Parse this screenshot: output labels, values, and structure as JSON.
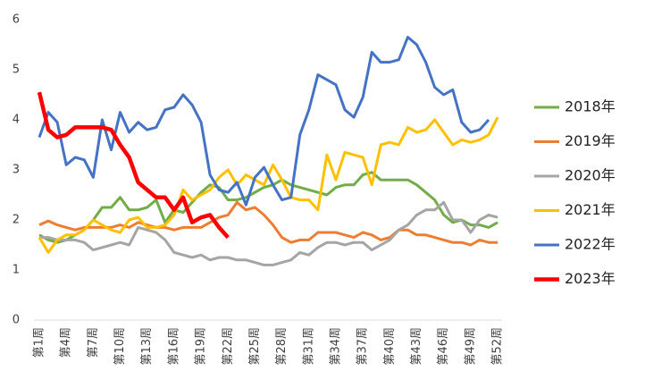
{
  "chart_data": {
    "type": "line",
    "categories": [
      "第1周",
      null,
      null,
      "第4周",
      null,
      null,
      "第7周",
      null,
      null,
      "第10周",
      null,
      null,
      "第13周",
      null,
      null,
      "第16周",
      null,
      null,
      "第19周",
      null,
      null,
      "第22周",
      null,
      null,
      "第25周",
      null,
      null,
      "第28周",
      null,
      null,
      "第31周",
      null,
      null,
      "第34周",
      null,
      null,
      "第37周",
      null,
      null,
      "第40周",
      null,
      null,
      "第43周",
      null,
      null,
      "第46周",
      null,
      null,
      "第49周",
      null,
      null,
      "第52周"
    ],
    "series": [
      {
        "name": "2018年",
        "color": "#70ad47",
        "values": [
          1.7,
          1.6,
          1.55,
          1.6,
          1.7,
          1.8,
          2.0,
          2.25,
          2.25,
          2.45,
          2.2,
          2.2,
          2.25,
          2.4,
          1.95,
          2.2,
          2.15,
          2.35,
          2.55,
          2.7,
          2.65,
          2.4,
          2.4,
          2.45,
          2.55,
          2.65,
          2.7,
          2.8,
          2.7,
          2.65,
          2.6,
          2.55,
          2.5,
          2.65,
          2.7,
          2.7,
          2.9,
          2.95,
          2.8,
          2.8,
          2.8,
          2.8,
          2.7,
          2.55,
          2.4,
          2.1,
          1.95,
          2.0,
          1.9,
          1.9,
          1.85,
          1.95
        ]
      },
      {
        "name": "2019年",
        "color": "#ed7d31",
        "values": [
          1.9,
          1.98,
          1.9,
          1.85,
          1.8,
          1.85,
          1.85,
          1.85,
          1.85,
          1.9,
          1.85,
          1.95,
          1.9,
          1.85,
          1.85,
          1.8,
          1.85,
          1.85,
          1.85,
          1.95,
          2.05,
          2.1,
          2.35,
          2.2,
          2.25,
          2.1,
          1.9,
          1.65,
          1.55,
          1.6,
          1.6,
          1.75,
          1.75,
          1.75,
          1.7,
          1.65,
          1.75,
          1.7,
          1.6,
          1.65,
          1.8,
          1.8,
          1.7,
          1.7,
          1.65,
          1.6,
          1.55,
          1.55,
          1.5,
          1.6,
          1.55,
          1.55
        ]
      },
      {
        "name": "2020年",
        "color": "#a5a5a5",
        "values": [
          1.65,
          1.65,
          1.6,
          1.6,
          1.6,
          1.55,
          1.4,
          1.45,
          1.5,
          1.55,
          1.5,
          1.85,
          1.8,
          1.75,
          1.6,
          1.35,
          1.3,
          1.25,
          1.3,
          1.2,
          1.25,
          1.25,
          1.2,
          1.2,
          1.15,
          1.1,
          1.1,
          1.15,
          1.2,
          1.35,
          1.3,
          1.45,
          1.55,
          1.55,
          1.5,
          1.55,
          1.55,
          1.4,
          1.5,
          1.6,
          1.8,
          1.9,
          2.1,
          2.2,
          2.2,
          2.35,
          2.0,
          2.0,
          1.75,
          2.0,
          2.1,
          2.05
        ]
      },
      {
        "name": "2021年",
        "color": "#ffc000",
        "values": [
          1.65,
          1.35,
          1.6,
          1.7,
          1.7,
          1.8,
          2.0,
          1.9,
          1.8,
          1.75,
          2.0,
          2.05,
          1.85,
          1.85,
          1.9,
          2.1,
          2.6,
          2.4,
          2.5,
          2.6,
          2.85,
          3.0,
          2.7,
          2.9,
          2.8,
          2.7,
          3.1,
          2.8,
          2.45,
          2.4,
          2.4,
          2.2,
          3.3,
          2.8,
          3.35,
          3.3,
          3.25,
          2.7,
          3.5,
          3.55,
          3.5,
          3.85,
          3.75,
          3.8,
          4.0,
          3.75,
          3.5,
          3.6,
          3.55,
          3.6,
          3.7,
          4.05
        ]
      },
      {
        "name": "2022年",
        "color": "#4472c4",
        "values": [
          3.65,
          4.15,
          3.95,
          3.1,
          3.25,
          3.2,
          2.85,
          4.0,
          3.4,
          4.15,
          3.75,
          3.95,
          3.8,
          3.85,
          4.2,
          4.25,
          4.5,
          4.3,
          3.95,
          2.9,
          2.6,
          2.55,
          2.75,
          2.3,
          2.85,
          3.05,
          2.7,
          2.4,
          2.45,
          3.7,
          4.2,
          4.9,
          4.8,
          4.7,
          4.2,
          4.05,
          4.45,
          5.35,
          5.15,
          5.15,
          5.2,
          5.65,
          5.5,
          5.15,
          4.65,
          4.5,
          4.6,
          3.95,
          3.75,
          3.8,
          4.0,
          null
        ]
      },
      {
        "name": "2023年",
        "color": "#ff0000",
        "values": [
          4.55,
          3.8,
          3.65,
          3.7,
          3.85,
          3.85,
          3.85,
          3.85,
          3.8,
          3.5,
          3.25,
          2.75,
          2.6,
          2.45,
          2.45,
          2.2,
          2.45,
          1.95,
          2.05,
          2.1,
          1.85,
          1.65,
          null,
          null,
          null,
          null,
          null,
          null,
          null,
          null,
          null,
          null,
          null,
          null,
          null,
          null,
          null,
          null,
          null,
          null,
          null,
          null,
          null,
          null,
          null,
          null,
          null,
          null,
          null,
          null,
          null,
          null
        ]
      }
    ],
    "ylim": [
      0,
      6
    ],
    "yticks": [
      0,
      1,
      2,
      3,
      4,
      5,
      6
    ],
    "legend": "right"
  }
}
